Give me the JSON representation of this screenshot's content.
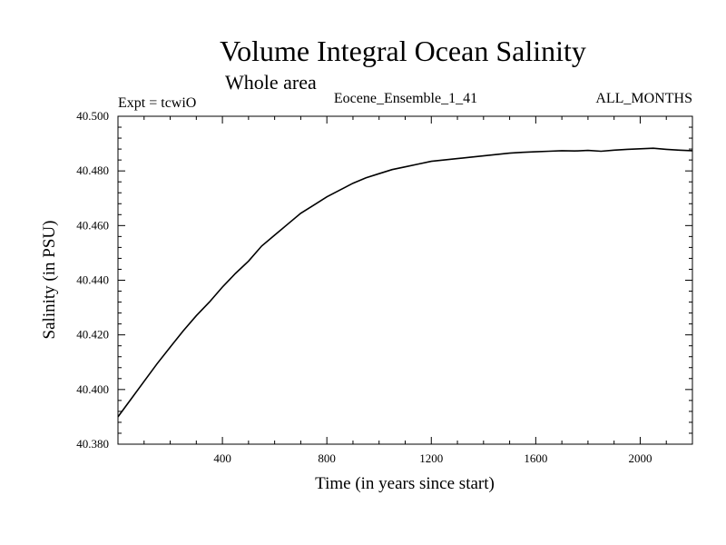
{
  "header": {
    "title": "Volume Integral Ocean Salinity",
    "subtitle": "Whole area",
    "expt_label": "Expt = tcwiO",
    "ensemble_label": "Eocene_Ensemble_1_41",
    "months_label": "ALL_MONTHS"
  },
  "chart_data": {
    "type": "line",
    "title": "Volume Integral Ocean Salinity",
    "subtitle": "Whole area",
    "xlabel": "Time (in years since start)",
    "ylabel": "Salinity (in PSU)",
    "xlim": [
      0,
      2200
    ],
    "ylim": [
      40.38,
      40.5
    ],
    "x_ticks": [
      400,
      800,
      1200,
      1600,
      2000
    ],
    "x_tick_labels": [
      "400",
      "800",
      "1200",
      "1600",
      "2000"
    ],
    "y_ticks": [
      40.38,
      40.4,
      40.42,
      40.44,
      40.46,
      40.48,
      40.5
    ],
    "y_tick_labels": [
      "40.380",
      "40.400",
      "40.420",
      "40.440",
      "40.460",
      "40.480",
      "40.500"
    ],
    "grid": false,
    "colors": {
      "line": "#000000",
      "axes": "#000000",
      "background": "#ffffff"
    },
    "series": [
      {
        "x": [
          0,
          50,
          100,
          150,
          200,
          250,
          300,
          350,
          400,
          450,
          500,
          550,
          600,
          650,
          700,
          750,
          800,
          850,
          900,
          950,
          1000,
          1050,
          1100,
          1150,
          1200,
          1250,
          1300,
          1350,
          1400,
          1450,
          1500,
          1550,
          1600,
          1650,
          1700,
          1750,
          1800,
          1850,
          1900,
          1950,
          2000,
          2050,
          2100,
          2150,
          2200
        ],
        "values": [
          40.39,
          40.3965,
          40.403,
          40.4095,
          40.4155,
          40.4215,
          40.427,
          40.432,
          40.4375,
          40.4425,
          40.447,
          40.4525,
          40.4565,
          40.4605,
          40.4645,
          40.4675,
          40.4705,
          40.473,
          40.4755,
          40.4775,
          40.479,
          40.4805,
          40.4815,
          40.4825,
          40.4835,
          40.484,
          40.4845,
          40.485,
          40.4855,
          40.486,
          40.4865,
          40.4868,
          40.487,
          40.4872,
          40.4874,
          40.4873,
          40.4875,
          40.4872,
          40.4876,
          40.4879,
          40.4881,
          40.4883,
          40.4879,
          40.4876,
          40.4874
        ]
      }
    ]
  }
}
